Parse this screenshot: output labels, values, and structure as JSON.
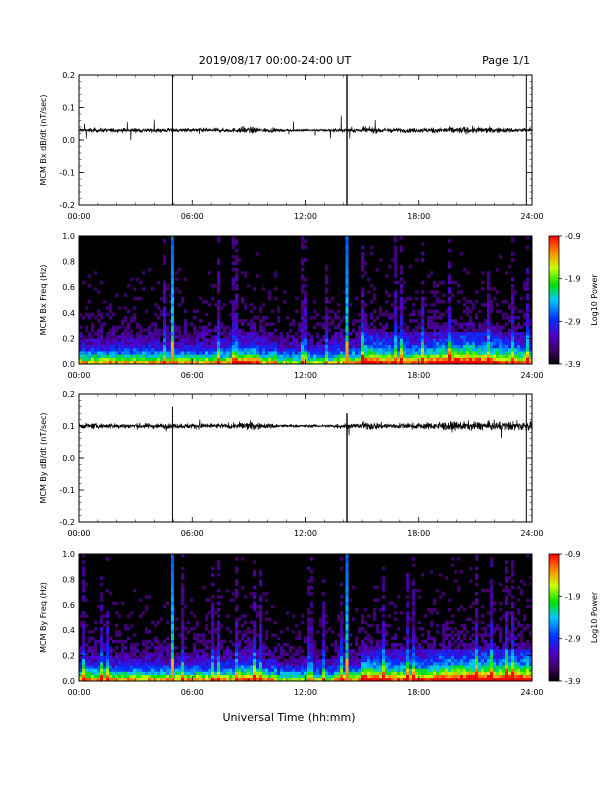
{
  "header": {
    "title": "2019/08/17  00:00-24:00 UT",
    "page": "Page 1/1"
  },
  "xlabel": "Universal Time (hh:mm)",
  "chart_data": [
    {
      "type": "line",
      "ylabel": "MCM Bx dB/dt (nT/sec)",
      "xlim": [
        "00:00",
        "24:00"
      ],
      "ylim": [
        -0.2,
        0.2
      ],
      "x_ticks": [
        "00:00",
        "06:00",
        "12:00",
        "18:00",
        "24:00"
      ],
      "y_ticks": [
        "0.2",
        "0.1",
        "0.0",
        "-0.1",
        "-0.2"
      ],
      "baseline": 0.03,
      "spikes_hours": [
        4.95,
        14.2,
        23.7
      ],
      "color": "#000000"
    },
    {
      "type": "heatmap",
      "ylabel": "MCM Bx Freq (Hz)",
      "xlim": [
        "00:00",
        "24:00"
      ],
      "ylim": [
        0.0,
        1.0
      ],
      "x_ticks": [
        "00:00",
        "06:00",
        "12:00",
        "18:00",
        "24:00"
      ],
      "y_ticks": [
        "1.0",
        "0.8",
        "0.6",
        "0.4",
        "0.2",
        "0.0"
      ],
      "colorbar": {
        "label": "Log10 Power",
        "ticks": [
          "-0.9",
          "-1.9",
          "-2.9",
          "-3.9"
        ],
        "range": [
          -3.9,
          -0.9
        ]
      },
      "spikes_hours": [
        4.95,
        14.2
      ]
    },
    {
      "type": "line",
      "ylabel": "MCM By dB/dt (nT/sec)",
      "xlim": [
        "00:00",
        "24:00"
      ],
      "ylim": [
        -0.2,
        0.2
      ],
      "x_ticks": [
        "00:00",
        "06:00",
        "12:00",
        "18:00",
        "24:00"
      ],
      "y_ticks": [
        "0.2",
        "0.1",
        "0.0",
        "-0.1",
        "-0.2"
      ],
      "baseline": 0.1,
      "spikes_hours": [
        4.95,
        14.2,
        23.7
      ],
      "color": "#000000"
    },
    {
      "type": "heatmap",
      "ylabel": "MCM By Freq (Hz)",
      "xlim": [
        "00:00",
        "24:00"
      ],
      "ylim": [
        0.0,
        1.0
      ],
      "x_ticks": [
        "00:00",
        "06:00",
        "12:00",
        "18:00",
        "24:00"
      ],
      "y_ticks": [
        "1.0",
        "0.8",
        "0.6",
        "0.4",
        "0.2",
        "0.0"
      ],
      "colorbar": {
        "label": "Log10 Power",
        "ticks": [
          "-0.9",
          "-1.9",
          "-2.9",
          "-3.9"
        ],
        "range": [
          -3.9,
          -0.9
        ]
      },
      "spikes_hours": [
        4.95,
        14.2
      ]
    }
  ]
}
